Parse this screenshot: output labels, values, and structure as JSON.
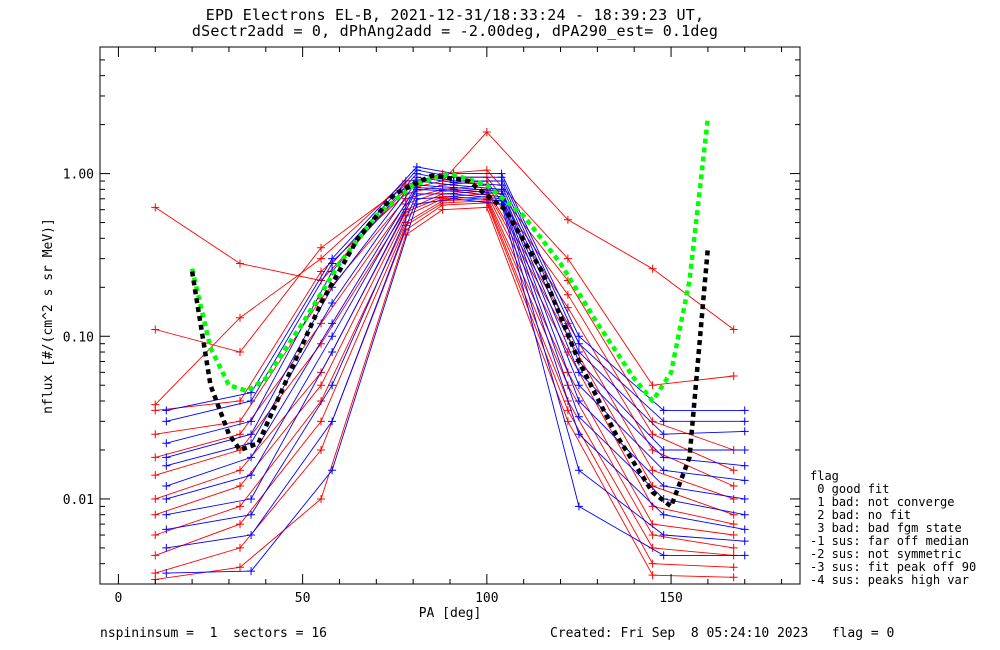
{
  "header": {
    "title_line1": "EPD Electrons EL-B, 2021-12-31/18:33:24 - 18:39:23 UT,",
    "title_line2": "dSectr2add = 0, dPhAng2add = -2.00deg, dPA290_est=   0.1deg"
  },
  "footer": {
    "left": "nspininsum =  1  sectors = 16",
    "right": "Created: Fri Sep  8 05:24:10 2023   flag = 0"
  },
  "flag_legend": {
    "title": "flag",
    "items": [
      " 0 good fit",
      " 1 bad: not converge",
      " 2 bad: no fit",
      " 3 bad: bad fgm state",
      "-1 sus: far off median",
      "-2 sus: not symmetric",
      "-3 sus: fit peak off 90",
      "-4 sus: peaks high var"
    ]
  },
  "chart_data": {
    "type": "line",
    "xlabel": "PA [deg]",
    "ylabel": "nflux [#/(cm^2 s sr MeV)]",
    "xlim": [
      -5,
      185
    ],
    "ylim": [
      0.003,
      6.0
    ],
    "yscale": "log",
    "xticks": [
      0,
      50,
      100,
      150
    ],
    "xtick_labels": [
      "0",
      "50",
      "100",
      "150"
    ],
    "yticks": [
      0.01,
      0.1,
      1.0
    ],
    "ytick_labels": [
      "0.01",
      "0.10",
      "1.00"
    ],
    "colors": {
      "red": "#ff0000",
      "blue": "#0000ff",
      "green": "#00ff00",
      "black": "#000000"
    },
    "series": [
      {
        "color": "red",
        "x": [
          10,
          33,
          55,
          78,
          88,
          100,
          122,
          145,
          167
        ],
        "y": [
          0.62,
          0.28,
          0.22,
          0.8,
          0.9,
          1.8,
          0.52,
          0.26,
          0.11
        ]
      },
      {
        "color": "red",
        "x": [
          10,
          33,
          55,
          78,
          88,
          100,
          122,
          145,
          167
        ],
        "y": [
          0.11,
          0.08,
          0.35,
          0.85,
          1.0,
          1.05,
          0.3,
          0.05,
          0.057
        ]
      },
      {
        "color": "red",
        "x": [
          10,
          33,
          55,
          78,
          88,
          100,
          122,
          145,
          167
        ],
        "y": [
          0.038,
          0.13,
          0.3,
          0.9,
          0.95,
          0.95,
          0.22,
          0.03,
          0.02
        ]
      },
      {
        "color": "red",
        "x": [
          10,
          33,
          55,
          78,
          88,
          100,
          122,
          145,
          167
        ],
        "y": [
          0.035,
          0.04,
          0.25,
          0.75,
          0.85,
          0.9,
          0.18,
          0.025,
          0.015
        ]
      },
      {
        "color": "red",
        "x": [
          10,
          33,
          55,
          78,
          88,
          100,
          122,
          145,
          167
        ],
        "y": [
          0.025,
          0.03,
          0.17,
          0.7,
          0.8,
          0.85,
          0.15,
          0.02,
          0.012
        ]
      },
      {
        "color": "red",
        "x": [
          10,
          33,
          55,
          78,
          88,
          100,
          122,
          145,
          167
        ],
        "y": [
          0.018,
          0.025,
          0.12,
          0.65,
          0.78,
          0.8,
          0.12,
          0.015,
          0.01
        ]
      },
      {
        "color": "red",
        "x": [
          10,
          33,
          55,
          78,
          88,
          100,
          122,
          145,
          167
        ],
        "y": [
          0.014,
          0.02,
          0.09,
          0.6,
          0.75,
          0.78,
          0.1,
          0.012,
          0.008
        ]
      },
      {
        "color": "red",
        "x": [
          10,
          33,
          55,
          78,
          88,
          100,
          122,
          145,
          167
        ],
        "y": [
          0.01,
          0.015,
          0.06,
          0.58,
          0.72,
          0.75,
          0.08,
          0.009,
          0.007
        ]
      },
      {
        "color": "red",
        "x": [
          10,
          33,
          55,
          78,
          88,
          100,
          122,
          145,
          167
        ],
        "y": [
          0.008,
          0.012,
          0.05,
          0.55,
          0.7,
          0.72,
          0.06,
          0.007,
          0.006
        ]
      },
      {
        "color": "red",
        "x": [
          10,
          33,
          55,
          78,
          88,
          100,
          122,
          145,
          167
        ],
        "y": [
          0.006,
          0.009,
          0.04,
          0.5,
          0.68,
          0.7,
          0.05,
          0.006,
          0.005
        ]
      },
      {
        "color": "red",
        "x": [
          10,
          33,
          55,
          78,
          88,
          100,
          122,
          145,
          167
        ],
        "y": [
          0.0045,
          0.007,
          0.03,
          0.48,
          0.66,
          0.68,
          0.04,
          0.005,
          0.0045
        ]
      },
      {
        "color": "red",
        "x": [
          10,
          33,
          55,
          78,
          88,
          100,
          122,
          145,
          167
        ],
        "y": [
          0.0035,
          0.005,
          0.02,
          0.45,
          0.64,
          0.66,
          0.035,
          0.004,
          0.0038
        ]
      },
      {
        "color": "red",
        "x": [
          10,
          33,
          55,
          78,
          88,
          100,
          122,
          145,
          167
        ],
        "y": [
          0.0032,
          0.0038,
          0.01,
          0.42,
          0.6,
          0.62,
          0.03,
          0.0034,
          0.0033
        ]
      },
      {
        "color": "blue",
        "x": [
          13,
          36,
          58,
          81,
          91,
          104,
          125,
          148,
          170
        ],
        "y": [
          0.035,
          0.045,
          0.3,
          1.1,
          1.0,
          1.0,
          0.1,
          0.035,
          0.035
        ]
      },
      {
        "color": "blue",
        "x": [
          13,
          36,
          58,
          81,
          91,
          104,
          125,
          148,
          170
        ],
        "y": [
          0.03,
          0.04,
          0.28,
          1.05,
          0.95,
          0.95,
          0.09,
          0.03,
          0.03
        ]
      },
      {
        "color": "blue",
        "x": [
          13,
          36,
          58,
          81,
          91,
          104,
          125,
          148,
          170
        ],
        "y": [
          0.022,
          0.03,
          0.25,
          1.0,
          0.9,
          0.9,
          0.08,
          0.025,
          0.026
        ]
      },
      {
        "color": "blue",
        "x": [
          13,
          36,
          58,
          81,
          91,
          104,
          125,
          148,
          170
        ],
        "y": [
          0.018,
          0.025,
          0.2,
          0.95,
          0.88,
          0.85,
          0.07,
          0.02,
          0.02
        ]
      },
      {
        "color": "blue",
        "x": [
          13,
          36,
          58,
          81,
          91,
          104,
          125,
          148,
          170
        ],
        "y": [
          0.016,
          0.022,
          0.16,
          0.9,
          0.85,
          0.8,
          0.06,
          0.018,
          0.016
        ]
      },
      {
        "color": "blue",
        "x": [
          13,
          36,
          58,
          81,
          91,
          104,
          125,
          148,
          170
        ],
        "y": [
          0.012,
          0.018,
          0.12,
          0.85,
          0.82,
          0.78,
          0.05,
          0.015,
          0.013
        ]
      },
      {
        "color": "blue",
        "x": [
          13,
          36,
          58,
          81,
          91,
          104,
          125,
          148,
          170
        ],
        "y": [
          0.01,
          0.014,
          0.1,
          0.82,
          0.8,
          0.75,
          0.04,
          0.012,
          0.01
        ]
      },
      {
        "color": "blue",
        "x": [
          13,
          36,
          58,
          81,
          91,
          104,
          125,
          148,
          170
        ],
        "y": [
          0.008,
          0.01,
          0.08,
          0.8,
          0.78,
          0.72,
          0.032,
          0.01,
          0.008
        ]
      },
      {
        "color": "blue",
        "x": [
          13,
          36,
          58,
          81,
          91,
          104,
          125,
          148,
          170
        ],
        "y": [
          0.0065,
          0.008,
          0.05,
          0.75,
          0.75,
          0.7,
          0.025,
          0.008,
          0.0065
        ]
      },
      {
        "color": "blue",
        "x": [
          13,
          36,
          58,
          81,
          91,
          104,
          125,
          148,
          170
        ],
        "y": [
          0.005,
          0.006,
          0.03,
          0.7,
          0.72,
          0.68,
          0.015,
          0.006,
          0.0055
        ]
      },
      {
        "color": "blue",
        "x": [
          13,
          36,
          58,
          81,
          91,
          104,
          125,
          148,
          170
        ],
        "y": [
          0.0035,
          0.0036,
          0.015,
          0.65,
          0.7,
          0.65,
          0.009,
          0.0045,
          0.0045
        ]
      }
    ],
    "fits": [
      {
        "color": "green",
        "x": [
          20,
          25,
          30,
          35,
          40,
          50,
          60,
          70,
          80,
          90,
          100,
          110,
          120,
          130,
          140,
          145,
          150,
          155,
          160
        ],
        "y": [
          0.26,
          0.085,
          0.05,
          0.046,
          0.055,
          0.12,
          0.28,
          0.55,
          0.85,
          1.0,
          0.85,
          0.55,
          0.28,
          0.12,
          0.055,
          0.04,
          0.06,
          0.22,
          2.2
        ]
      },
      {
        "color": "black",
        "x": [
          20,
          25,
          30,
          33,
          38,
          45,
          55,
          65,
          75,
          85,
          95,
          105,
          115,
          125,
          135,
          145,
          150,
          155,
          160
        ],
        "y": [
          0.25,
          0.05,
          0.025,
          0.02,
          0.022,
          0.05,
          0.16,
          0.4,
          0.75,
          0.97,
          0.9,
          0.6,
          0.25,
          0.07,
          0.025,
          0.011,
          0.009,
          0.018,
          0.35
        ]
      }
    ]
  }
}
